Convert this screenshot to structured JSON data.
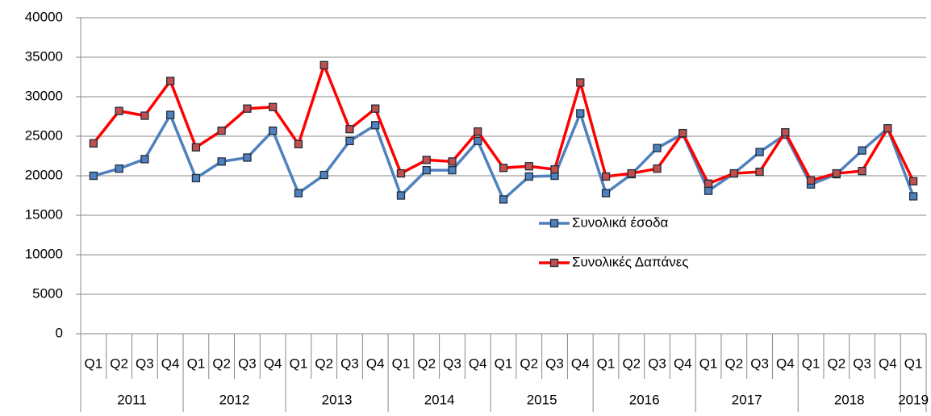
{
  "chart_data": {
    "type": "line",
    "groups": [
      {
        "label": "2011",
        "categories": [
          "Q1",
          "Q2",
          "Q3",
          "Q4"
        ]
      },
      {
        "label": "2012",
        "categories": [
          "Q1",
          "Q2",
          "Q3",
          "Q4"
        ]
      },
      {
        "label": "2013",
        "categories": [
          "Q1",
          "Q2",
          "Q3",
          "Q4"
        ]
      },
      {
        "label": "2014",
        "categories": [
          "Q1",
          "Q2",
          "Q3",
          "Q4"
        ]
      },
      {
        "label": "2015",
        "categories": [
          "Q1",
          "Q2",
          "Q3",
          "Q4"
        ]
      },
      {
        "label": "2016",
        "categories": [
          "Q1",
          "Q2",
          "Q3",
          "Q4"
        ]
      },
      {
        "label": "2017",
        "categories": [
          "Q1",
          "Q2",
          "Q3",
          "Q4"
        ]
      },
      {
        "label": "2018",
        "categories": [
          "Q1",
          "Q2",
          "Q3",
          "Q4"
        ]
      },
      {
        "label": "2019",
        "categories": [
          "Q1"
        ]
      }
    ],
    "series": [
      {
        "name": "Συνολικά έσοδα",
        "color": "#4f81bd",
        "marker_color": "#4f81bd",
        "values": [
          20000,
          20900,
          22100,
          27700,
          19700,
          21800,
          22300,
          25700,
          17800,
          20100,
          24400,
          26400,
          17500,
          20700,
          20700,
          24400,
          17000,
          19900,
          20000,
          27900,
          17800,
          20200,
          23500,
          25300,
          18100,
          20300,
          23000,
          25200,
          18900,
          20200,
          23200,
          26000,
          17400
        ]
      },
      {
        "name": "Συνολικές Δαπάνες",
        "color": "#ff0000",
        "marker_color": "#c0504d",
        "values": [
          24100,
          28200,
          27600,
          32000,
          23600,
          25700,
          28500,
          28700,
          24000,
          34000,
          25900,
          28500,
          20300,
          22000,
          21800,
          25600,
          21000,
          21200,
          20800,
          31800,
          19900,
          20300,
          20900,
          25400,
          19000,
          20300,
          20500,
          25500,
          19400,
          20300,
          20600,
          26000,
          19300
        ]
      }
    ],
    "ylim": [
      0,
      40000
    ],
    "yticks": [
      0,
      5000,
      10000,
      15000,
      20000,
      25000,
      30000,
      35000,
      40000
    ],
    "grid": true
  }
}
